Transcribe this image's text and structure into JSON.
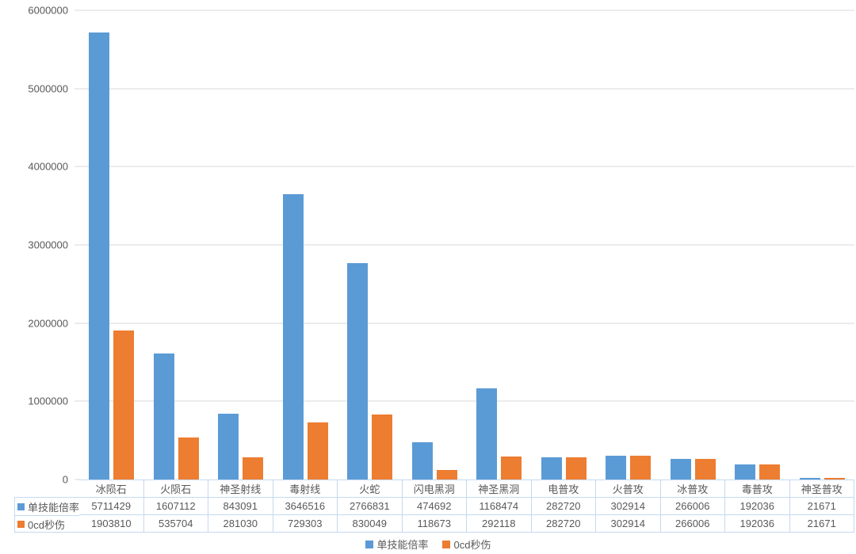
{
  "chart_data": {
    "type": "bar",
    "title": "",
    "xlabel": "",
    "ylabel": "",
    "categories": [
      "冰陨石",
      "火陨石",
      "神圣射线",
      "毒射线",
      "火蛇",
      "闪电黑洞",
      "神圣黑洞",
      "电普攻",
      "火普攻",
      "冰普攻",
      "毒普攻",
      "神圣普攻"
    ],
    "series": [
      {
        "name": "单技能倍率",
        "color": "#5B9BD5",
        "values": [
          5711429,
          1607112,
          843091,
          3646516,
          2766831,
          474692,
          1168474,
          282720,
          302914,
          266006,
          192036,
          21671
        ]
      },
      {
        "name": "0cd秒伤",
        "color": "#ED7D31",
        "values": [
          1903810,
          535704,
          281030,
          729303,
          830049,
          118673,
          292118,
          282720,
          302914,
          266006,
          192036,
          21671
        ]
      }
    ],
    "ylim": [
      0,
      6000000
    ],
    "ytick_step": 1000000,
    "yticks": [
      "6000000",
      "5000000",
      "4000000",
      "3000000",
      "2000000",
      "1000000",
      "0"
    ],
    "grid": true,
    "legend_position": "bottom",
    "shows_data_table": true
  },
  "colors": {
    "series_blue": "#5B9BD5",
    "series_orange": "#ED7D31",
    "gridline": "#D9D9D9",
    "table_border": "#C5D9F1",
    "text": "#595959",
    "background": "#FFFFFF"
  }
}
